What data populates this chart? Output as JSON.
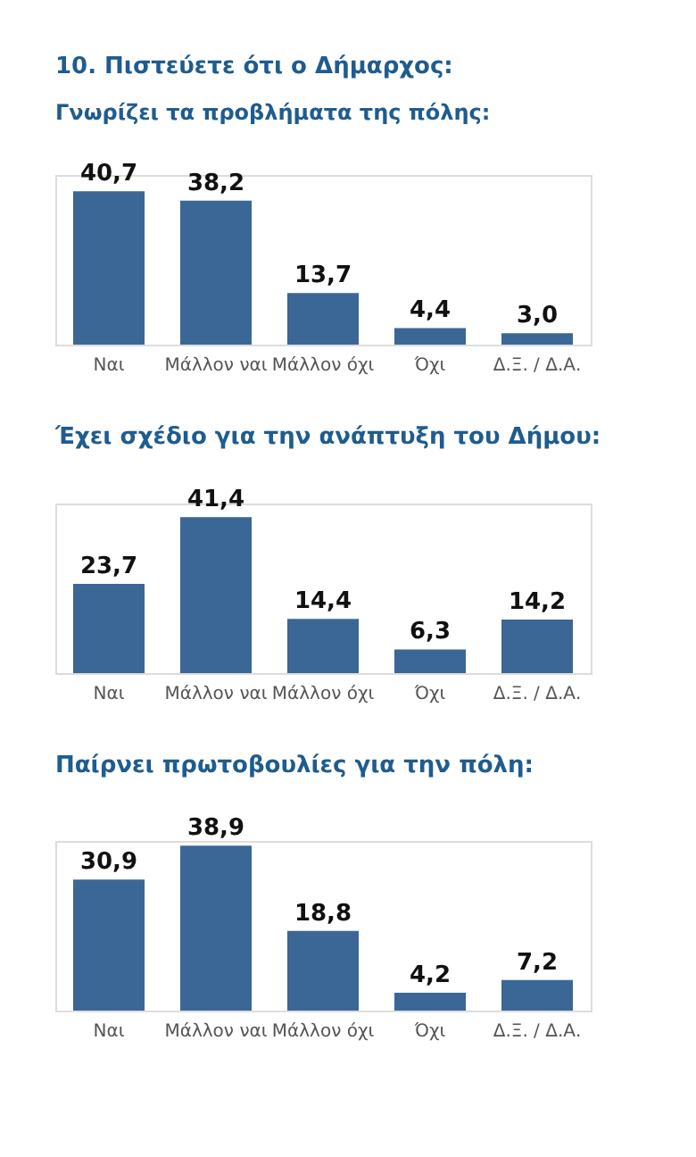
{
  "chart_data": [
    {
      "type": "bar",
      "title": "10. Πιστεύετε ότι ο Δήμαρχος:",
      "subtitle": "Γνωρίζει τα προβλήματα της πόλης:",
      "categories": [
        "Ναι",
        "Μάλλον ναι",
        "Μάλλον όχι",
        "Όχι",
        "Δ.Ξ. / Δ.Α."
      ],
      "values": [
        40.7,
        38.2,
        13.7,
        4.4,
        3.0
      ],
      "color": "#3a6796",
      "data_labels": true,
      "value_labels": [
        "40,7",
        "38,2",
        "13,7",
        "4,4",
        "3,0"
      ]
    },
    {
      "type": "bar",
      "title": "Έχει σχέδιο για την ανάπτυξη του Δήμου:",
      "categories": [
        "Ναι",
        "Μάλλον ναι",
        "Μάλλον όχι",
        "Όχι",
        "Δ.Ξ. / Δ.Α."
      ],
      "values": [
        23.7,
        41.4,
        14.4,
        6.3,
        14.2
      ],
      "color": "#3a6796",
      "data_labels": true,
      "value_labels": [
        "23,7",
        "41,4",
        "14,4",
        "6,3",
        "14,2"
      ]
    },
    {
      "type": "bar",
      "title": "Παίρνει πρωτοβουλίες για την πόλη:",
      "categories": [
        "Ναι",
        "Μάλλον ναι",
        "Μάλλον όχι",
        "Όχι",
        "Δ.Ξ. / Δ.Α."
      ],
      "values": [
        30.9,
        38.9,
        18.8,
        4.2,
        7.2
      ],
      "color": "#3a6796",
      "data_labels": true,
      "value_labels": [
        "30,9",
        "38,9",
        "18,8",
        "4,2",
        "7,2"
      ]
    }
  ]
}
